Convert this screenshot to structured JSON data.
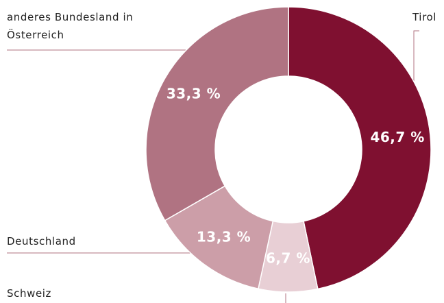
{
  "chart_data": {
    "type": "donut",
    "categories": [
      "Tirol",
      "Schweiz",
      "Deutschland",
      "anderes Bundesland in Österreich"
    ],
    "values": [
      46.7,
      6.7,
      13.3,
      33.3
    ],
    "value_labels": [
      "46,7 %",
      "6,7 %",
      "13,3 %",
      "33,3 %"
    ],
    "colors": [
      "#7f1030",
      "#e8cfd5",
      "#cc9ea8",
      "#b07382"
    ]
  }
}
